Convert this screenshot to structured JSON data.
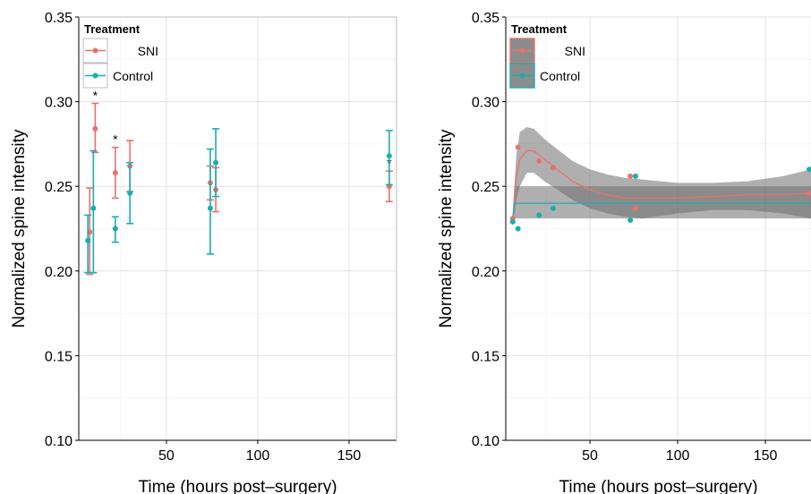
{
  "chart_data": [
    {
      "type": "scatter",
      "title": "",
      "xlabel": "Time (hours post–surgery)",
      "ylabel": "Normalized spine intensity",
      "xlim": [
        2,
        176
      ],
      "ylim": [
        0.1,
        0.35
      ],
      "xticks": [
        50,
        100,
        150
      ],
      "yticks": [
        0.1,
        0.15,
        0.2,
        0.25,
        0.3,
        0.35
      ],
      "grid": true,
      "legend": {
        "title": "Treatment",
        "placement": "top-left"
      },
      "series": [
        {
          "name": "SNI",
          "color": "#e8726b",
          "points": [
            {
              "x": 8,
              "y": 0.223,
              "ylo": 0.198,
              "yhi": 0.249,
              "star": false
            },
            {
              "x": 11,
              "y": 0.284,
              "ylo": 0.27,
              "yhi": 0.299,
              "star": true
            },
            {
              "x": 22,
              "y": 0.258,
              "ylo": 0.243,
              "yhi": 0.273,
              "star": true
            },
            {
              "x": 30,
              "y": 0.262,
              "ylo": 0.247,
              "yhi": 0.277,
              "star": false
            },
            {
              "x": 74,
              "y": 0.252,
              "ylo": 0.242,
              "yhi": 0.262,
              "star": false
            },
            {
              "x": 77,
              "y": 0.248,
              "ylo": 0.235,
              "yhi": 0.261,
              "star": false
            },
            {
              "x": 172,
              "y": 0.25,
              "ylo": 0.241,
              "yhi": 0.259,
              "star": true
            }
          ]
        },
        {
          "name": "Control",
          "color": "#19aeb0",
          "points": [
            {
              "x": 7,
              "y": 0.218,
              "ylo": 0.199,
              "yhi": 0.233
            },
            {
              "x": 10,
              "y": 0.237,
              "ylo": 0.199,
              "yhi": 0.271
            },
            {
              "x": 22,
              "y": 0.225,
              "ylo": 0.217,
              "yhi": 0.232
            },
            {
              "x": 30,
              "y": 0.246,
              "ylo": 0.228,
              "yhi": 0.264
            },
            {
              "x": 74,
              "y": 0.237,
              "ylo": 0.21,
              "yhi": 0.272
            },
            {
              "x": 77,
              "y": 0.264,
              "ylo": 0.244,
              "yhi": 0.284
            },
            {
              "x": 172,
              "y": 0.268,
              "ylo": 0.251,
              "yhi": 0.283
            }
          ]
        }
      ]
    },
    {
      "type": "scatter",
      "title": "",
      "xlabel": "Time (hours post–surgery)",
      "ylabel": "Normalized spine intensity",
      "xlim": [
        2,
        176
      ],
      "ylim": [
        0.1,
        0.35
      ],
      "xticks": [
        50,
        100,
        150
      ],
      "yticks": [
        0.1,
        0.15,
        0.2,
        0.25,
        0.3,
        0.35
      ],
      "grid": true,
      "legend": {
        "title": "Treatment",
        "placement": "top-left"
      },
      "series": [
        {
          "name": "SNI",
          "color": "#e8726b",
          "points": [
            {
              "x": 6,
              "y": 0.231
            },
            {
              "x": 9,
              "y": 0.273
            },
            {
              "x": 21,
              "y": 0.265
            },
            {
              "x": 29,
              "y": 0.261
            },
            {
              "x": 73,
              "y": 0.256
            },
            {
              "x": 76,
              "y": 0.237
            },
            {
              "x": 175,
              "y": 0.246
            }
          ],
          "fit": [
            [
              6,
              0.23
            ],
            [
              8,
              0.255
            ],
            [
              10,
              0.266
            ],
            [
              14,
              0.271
            ],
            [
              18,
              0.271
            ],
            [
              24,
              0.266
            ],
            [
              30,
              0.261
            ],
            [
              40,
              0.253
            ],
            [
              50,
              0.248
            ],
            [
              60,
              0.245
            ],
            [
              70,
              0.243
            ],
            [
              80,
              0.243
            ],
            [
              100,
              0.243
            ],
            [
              120,
              0.244
            ],
            [
              140,
              0.245
            ],
            [
              160,
              0.245
            ],
            [
              176,
              0.246
            ]
          ],
          "band": [
            [
              6,
              0.226,
              0.236
            ],
            [
              8,
              0.242,
              0.268
            ],
            [
              10,
              0.25,
              0.282
            ],
            [
              14,
              0.258,
              0.285
            ],
            [
              18,
              0.258,
              0.284
            ],
            [
              24,
              0.253,
              0.278
            ],
            [
              30,
              0.249,
              0.273
            ],
            [
              40,
              0.242,
              0.265
            ],
            [
              50,
              0.237,
              0.26
            ],
            [
              60,
              0.234,
              0.257
            ],
            [
              70,
              0.232,
              0.255
            ],
            [
              80,
              0.231,
              0.254
            ],
            [
              100,
              0.234,
              0.252
            ],
            [
              120,
              0.236,
              0.252
            ],
            [
              140,
              0.236,
              0.253
            ],
            [
              160,
              0.234,
              0.256
            ],
            [
              176,
              0.231,
              0.26
            ]
          ]
        },
        {
          "name": "Control",
          "color": "#19aeb0",
          "points": [
            {
              "x": 6,
              "y": 0.229
            },
            {
              "x": 9,
              "y": 0.225
            },
            {
              "x": 21,
              "y": 0.233
            },
            {
              "x": 29,
              "y": 0.237
            },
            {
              "x": 73,
              "y": 0.23
            },
            {
              "x": 76,
              "y": 0.256
            },
            {
              "x": 175,
              "y": 0.26
            }
          ],
          "fit": [
            [
              6,
              0.231
            ],
            [
              7,
              0.24
            ],
            [
              176,
              0.24
            ]
          ],
          "band": [
            [
              6,
              0.231,
              0.231
            ],
            [
              7,
              0.231,
              0.25
            ],
            [
              176,
              0.231,
              0.25
            ]
          ]
        }
      ]
    }
  ]
}
